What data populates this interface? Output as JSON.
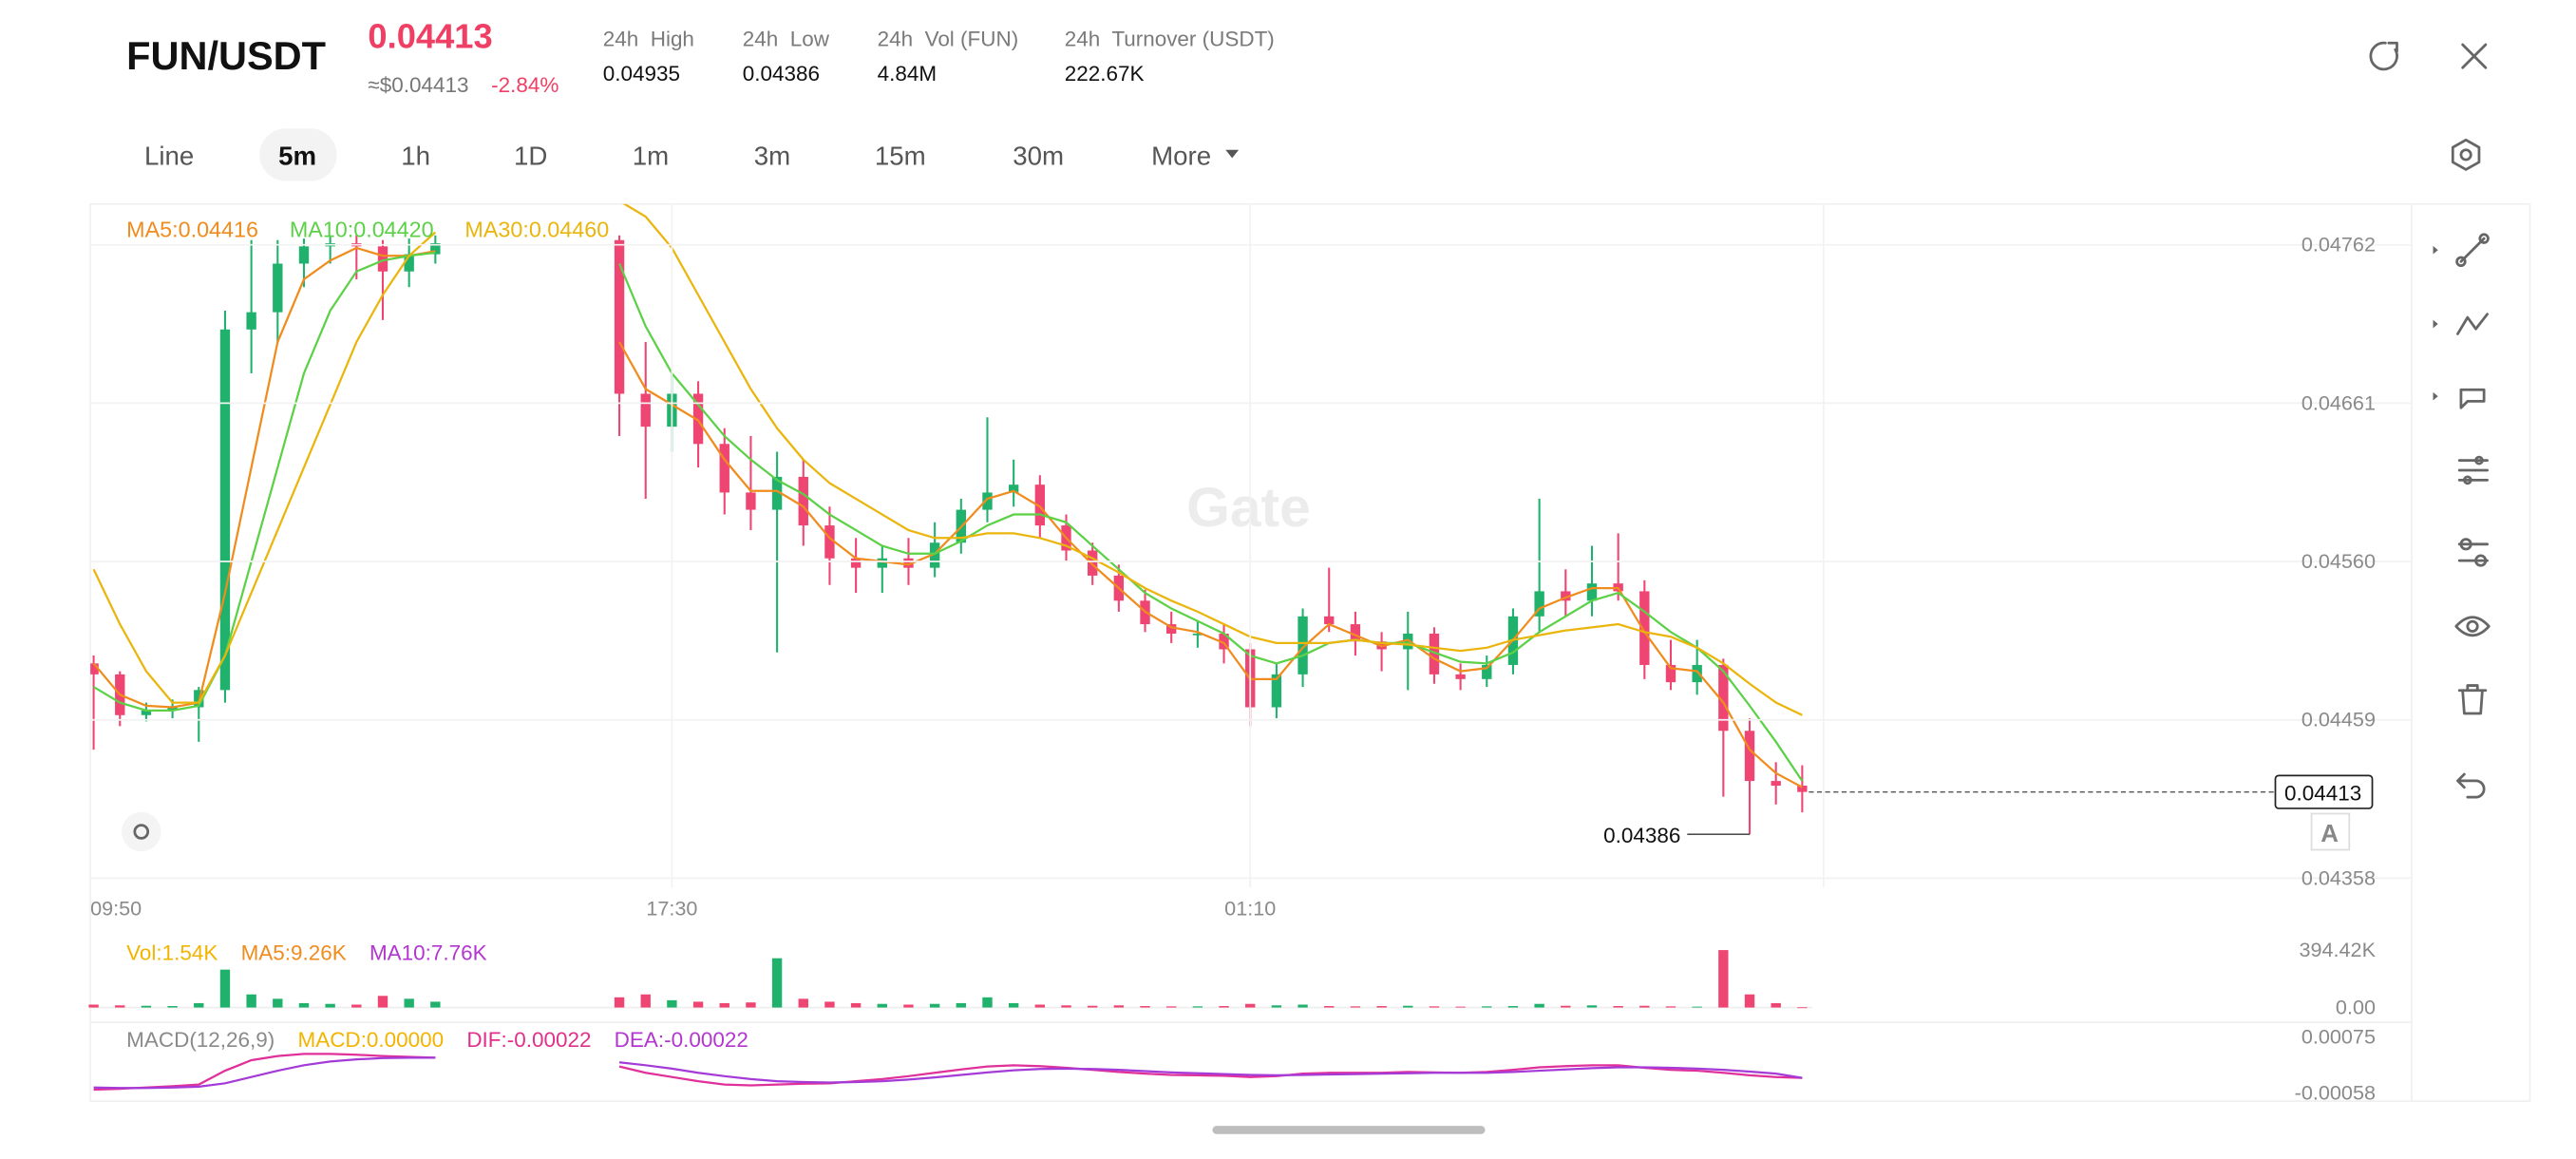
{
  "header": {
    "pair": "FUN/USDT",
    "price": "0.04413",
    "usd_price": "≈$0.04413",
    "change": "-2.84%",
    "stats": [
      {
        "label": "24h  High",
        "value": "0.04935"
      },
      {
        "label": "24h  Low",
        "value": "0.04386"
      },
      {
        "label": "24h  Vol (FUN)",
        "value": "4.84M"
      },
      {
        "label": "24h  Turnover (USDT)",
        "value": "222.67K"
      }
    ]
  },
  "tabs": [
    "Line",
    "5m",
    "1h",
    "1D",
    "1m",
    "3m",
    "15m",
    "30m",
    "More"
  ],
  "chart_data": {
    "type": "candlestick",
    "watermark": "Gate",
    "up_color": "#20b26c",
    "down_color": "#ef4572",
    "categories": [
      "09:50",
      null,
      null,
      null,
      null,
      null,
      null,
      null,
      null,
      null,
      null,
      null,
      null,
      null,
      null,
      null,
      null,
      null,
      null,
      null,
      null,
      null,
      "17:30",
      null,
      null,
      null,
      null,
      null,
      null,
      null,
      null,
      null,
      null,
      null,
      null,
      null,
      null,
      null,
      null,
      null,
      null,
      null,
      null,
      null,
      "01:10",
      null,
      null,
      null,
      null,
      null,
      null,
      null,
      null,
      null,
      null,
      null,
      null,
      null,
      null,
      null,
      null,
      null,
      null,
      null,
      null,
      null
    ],
    "candles": [
      [
        0.04495,
        0.045,
        0.0444,
        0.04488
      ],
      [
        0.04488,
        0.0449,
        0.04455,
        0.04462
      ],
      [
        0.04462,
        0.0447,
        0.04458,
        0.04465
      ],
      [
        0.04465,
        0.04472,
        0.0446,
        0.04467
      ],
      [
        0.04467,
        0.0448,
        0.04445,
        0.04478
      ],
      [
        0.04478,
        0.0472,
        0.0447,
        0.04708
      ],
      [
        0.04708,
        0.04765,
        0.0468,
        0.04719
      ],
      [
        0.04719,
        0.04765,
        0.047,
        0.0475
      ],
      [
        0.0475,
        0.04766,
        0.04735,
        0.04761
      ],
      [
        0.04761,
        0.04768,
        0.0475,
        0.04763
      ],
      [
        0.04763,
        0.04768,
        0.0474,
        0.04761
      ],
      [
        0.04761,
        0.04765,
        0.04714,
        0.04745
      ],
      [
        0.04745,
        0.04766,
        0.04735,
        0.04756
      ],
      [
        0.04756,
        0.04768,
        0.0475,
        0.04763
      ],
      null,
      null,
      null,
      null,
      null,
      null,
      [
        0.04765,
        0.04768,
        0.0464,
        0.04667
      ],
      [
        0.04667,
        0.047,
        0.046,
        0.04646
      ],
      [
        0.04646,
        0.0468,
        0.0463,
        0.04667
      ],
      [
        0.04667,
        0.04675,
        0.0462,
        0.04635
      ],
      [
        0.04635,
        0.04645,
        0.0459,
        0.04604
      ],
      [
        0.04604,
        0.0464,
        0.0458,
        0.04593
      ],
      [
        0.04593,
        0.0463,
        0.04502,
        0.04614
      ],
      [
        0.04614,
        0.04625,
        0.0457,
        0.04583
      ],
      [
        0.04583,
        0.04595,
        0.04545,
        0.04562
      ],
      [
        0.04562,
        0.04575,
        0.0454,
        0.04556
      ],
      [
        0.04556,
        0.0457,
        0.0454,
        0.04562
      ],
      [
        0.04562,
        0.04575,
        0.04545,
        0.04556
      ],
      [
        0.04556,
        0.04585,
        0.0455,
        0.04572
      ],
      [
        0.04572,
        0.046,
        0.04565,
        0.04593
      ],
      [
        0.04593,
        0.04652,
        0.04585,
        0.04604
      ],
      [
        0.04604,
        0.04625,
        0.04595,
        0.04609
      ],
      [
        0.04609,
        0.04615,
        0.04575,
        0.04583
      ],
      [
        0.04583,
        0.0459,
        0.0456,
        0.04567
      ],
      [
        0.04567,
        0.04572,
        0.04545,
        0.04551
      ],
      [
        0.04551,
        0.04558,
        0.04528,
        0.04535
      ],
      [
        0.04535,
        0.04542,
        0.04515,
        0.0452
      ],
      [
        0.0452,
        0.04528,
        0.04508,
        0.04514
      ],
      [
        0.04514,
        0.04522,
        0.04505,
        0.04514
      ],
      [
        0.04514,
        0.0452,
        0.04495,
        0.04504
      ],
      [
        0.04504,
        0.04508,
        0.04455,
        0.04467
      ],
      [
        0.04467,
        0.04495,
        0.0446,
        0.04488
      ],
      [
        0.04488,
        0.0453,
        0.0448,
        0.04525
      ],
      [
        0.04525,
        0.04556,
        0.04515,
        0.0452
      ],
      [
        0.0452,
        0.04528,
        0.045,
        0.04509
      ],
      [
        0.04509,
        0.04515,
        0.0449,
        0.04504
      ],
      [
        0.04504,
        0.04528,
        0.04478,
        0.04514
      ],
      [
        0.04514,
        0.04518,
        0.04482,
        0.04488
      ],
      [
        0.04488,
        0.04495,
        0.04478,
        0.04485
      ],
      [
        0.04485,
        0.045,
        0.0448,
        0.04494
      ],
      [
        0.04494,
        0.0453,
        0.04488,
        0.04525
      ],
      [
        0.04525,
        0.046,
        0.04515,
        0.04541
      ],
      [
        0.04541,
        0.04555,
        0.04525,
        0.04535
      ],
      [
        0.04535,
        0.0457,
        0.04525,
        0.04546
      ],
      [
        0.04546,
        0.04578,
        0.04535,
        0.04541
      ],
      [
        0.04541,
        0.04548,
        0.04485,
        0.04494
      ],
      [
        0.04494,
        0.0451,
        0.04478,
        0.04483
      ],
      [
        0.04483,
        0.0451,
        0.04475,
        0.04494
      ],
      [
        0.04494,
        0.04498,
        0.0441,
        0.04452
      ],
      [
        0.04452,
        0.0446,
        0.04386,
        0.0442
      ],
      [
        0.0442,
        0.04432,
        0.04405,
        0.04417
      ],
      [
        0.04417,
        0.0443,
        0.044,
        0.04413
      ]
    ],
    "series": [
      {
        "name": "MA5:0.04416",
        "color": "#f08c1e",
        "values": [
          0.04495,
          0.04475,
          0.04468,
          0.04467,
          0.0447,
          0.0454,
          0.0462,
          0.047,
          0.0474,
          0.04752,
          0.0476,
          0.04755,
          0.04755,
          0.04758,
          null,
          null,
          null,
          null,
          null,
          null,
          0.047,
          0.0467,
          0.0466,
          0.0465,
          0.04625,
          0.04605,
          0.04605,
          0.04595,
          0.04575,
          0.04562,
          0.0456,
          0.04558,
          0.04565,
          0.04582,
          0.046,
          0.04605,
          0.04595,
          0.04575,
          0.04558,
          0.04543,
          0.04528,
          0.04518,
          0.04515,
          0.04508,
          0.04485,
          0.04485,
          0.04505,
          0.0452,
          0.04513,
          0.04506,
          0.0451,
          0.04498,
          0.0449,
          0.04492,
          0.0451,
          0.0453,
          0.04537,
          0.04543,
          0.04543,
          0.04515,
          0.04492,
          0.0449,
          0.0447,
          0.0444,
          0.04425,
          0.04416
        ]
      },
      {
        "name": "MA10:0.04420",
        "color": "#5cd147",
        "values": [
          0.0448,
          0.0447,
          0.04465,
          0.04465,
          0.04468,
          0.045,
          0.0456,
          0.0462,
          0.0468,
          0.0472,
          0.04745,
          0.04752,
          0.04755,
          0.04757,
          null,
          null,
          null,
          null,
          null,
          null,
          0.0475,
          0.0471,
          0.0468,
          0.0466,
          0.0464,
          0.04625,
          0.04612,
          0.04603,
          0.0459,
          0.0458,
          0.0457,
          0.04565,
          0.04565,
          0.04573,
          0.04583,
          0.0459,
          0.0459,
          0.04585,
          0.0457,
          0.04555,
          0.0454,
          0.0453,
          0.04522,
          0.04514,
          0.045,
          0.04495,
          0.045,
          0.04508,
          0.0451,
          0.04508,
          0.04508,
          0.04502,
          0.04496,
          0.04495,
          0.04502,
          0.04515,
          0.04525,
          0.04535,
          0.0454,
          0.04528,
          0.04515,
          0.04505,
          0.0449,
          0.04468,
          0.04445,
          0.0442
        ]
      },
      {
        "name": "MA30:0.04460",
        "color": "#eab50c",
        "values": [
          0.04555,
          0.0452,
          0.0449,
          0.0447,
          0.0447,
          0.045,
          0.0454,
          0.0458,
          0.0462,
          0.0466,
          0.047,
          0.0473,
          0.04755,
          0.0477,
          null,
          null,
          null,
          null,
          null,
          null,
          0.0479,
          0.0478,
          0.0476,
          0.0473,
          0.047,
          0.0467,
          0.04645,
          0.04625,
          0.0461,
          0.046,
          0.0459,
          0.0458,
          0.04575,
          0.04575,
          0.04578,
          0.04578,
          0.04575,
          0.0457,
          0.04562,
          0.04553,
          0.04543,
          0.04535,
          0.04528,
          0.0452,
          0.04512,
          0.04508,
          0.04508,
          0.04508,
          0.0451,
          0.04508,
          0.04507,
          0.04505,
          0.04503,
          0.04505,
          0.0451,
          0.04513,
          0.04516,
          0.04518,
          0.0452,
          0.04515,
          0.04512,
          0.04505,
          0.04495,
          0.04482,
          0.0447,
          0.04462
        ]
      }
    ],
    "ylim": [
      0.04352,
      0.04788
    ],
    "yticks": [
      0.04358,
      0.04459,
      {
        "value": 0.0456,
        "label": "0.04560"
      },
      0.04661,
      0.04762
    ],
    "last_price": 0.04413,
    "low_marker": 0.04386,
    "grid": true,
    "volume": {
      "legend": [
        {
          "text": "Vol:1.54K",
          "color": "#f2b400"
        },
        {
          "text": "MA5:9.26K",
          "color": "#f08c1e"
        },
        {
          "text": "MA10:7.76K",
          "color": "#b236cf"
        }
      ],
      "values": [
        20000,
        15000,
        12000,
        10000,
        30000,
        260000,
        90000,
        60000,
        30000,
        25000,
        20000,
        80000,
        60000,
        40000,
        null,
        null,
        null,
        null,
        null,
        null,
        70000,
        90000,
        50000,
        40000,
        30000,
        35000,
        338000,
        60000,
        40000,
        30000,
        25000,
        20000,
        25000,
        30000,
        70000,
        30000,
        20000,
        15000,
        12000,
        15000,
        10000,
        8000,
        8000,
        10000,
        25000,
        15000,
        20000,
        10000,
        8000,
        10000,
        12000,
        8000,
        6000,
        8000,
        10000,
        25000,
        12000,
        15000,
        10000,
        12000,
        8000,
        6000,
        394000,
        90000,
        30000,
        1540
      ],
      "ylim": [
        0,
        394420
      ],
      "yticks": [
        {
          "value": 0,
          "label": "0.00"
        },
        {
          "value": 394420,
          "label": "394.42K"
        }
      ]
    },
    "macd": {
      "legend": [
        {
          "text": "MACD(12,26,9)",
          "color": "#8a8a8a"
        },
        {
          "text": "MACD:0.00000",
          "color": "#f2b400"
        },
        {
          "text": "DIF:-0.00022",
          "color": "#e0308a"
        },
        {
          "text": "DEA:-0.00022",
          "color": "#b236cf"
        }
      ],
      "series": [
        {
          "name": "DIF",
          "color": "#e0309a",
          "values": [
            -0.0005,
            -0.00048,
            -0.00045,
            -0.00042,
            -0.00038,
            -5e-05,
            0.0002,
            0.0003,
            0.00035,
            0.00035,
            0.00033,
            0.0003,
            0.00028,
            0.00026,
            null,
            null,
            null,
            null,
            null,
            null,
            5e-05,
            -0.0001,
            -0.0002,
            -0.0003,
            -0.00038,
            -0.0004,
            -0.00038,
            -0.00036,
            -0.00035,
            -0.0003,
            -0.00025,
            -0.00018,
            -0.0001,
            -2e-05,
            5e-05,
            8e-05,
            6e-05,
            2e-05,
            -3e-05,
            -8e-05,
            -0.00012,
            -0.00015,
            -0.00016,
            -0.00017,
            -0.0002,
            -0.00018,
            -0.00012,
            -0.0001,
            -0.0001,
            -0.0001,
            -8e-05,
            -9e-05,
            -0.0001,
            -8e-05,
            -3e-05,
            3e-05,
            6e-05,
            8e-05,
            8e-05,
            2e-05,
            -3e-05,
            -5e-05,
            -0.0001,
            -0.00016,
            -0.0002,
            -0.00022
          ]
        },
        {
          "name": "DEA",
          "color": "#a43ad8",
          "values": [
            -0.00045,
            -0.00046,
            -0.00046,
            -0.00045,
            -0.00043,
            -0.00035,
            -0.0002,
            -5e-05,
            8e-05,
            0.00017,
            0.00022,
            0.00025,
            0.00026,
            0.00026,
            null,
            null,
            null,
            null,
            null,
            null,
            0.00015,
            8e-05,
            0,
            -0.0001,
            -0.00018,
            -0.00025,
            -0.0003,
            -0.00032,
            -0.00033,
            -0.00032,
            -0.0003,
            -0.00026,
            -0.00021,
            -0.00015,
            -9e-05,
            -4e-05,
            -1e-05,
            0,
            -1e-05,
            -3e-05,
            -6e-05,
            -9e-05,
            -0.00011,
            -0.00013,
            -0.00015,
            -0.00016,
            -0.00015,
            -0.00014,
            -0.00013,
            -0.00012,
            -0.00011,
            -0.0001,
            -0.0001,
            -0.0001,
            -8e-05,
            -5e-05,
            -2e-05,
            1e-05,
            3e-05,
            3e-05,
            2e-05,
            0,
            -3e-05,
            -7e-05,
            -0.00012,
            -0.00022
          ]
        }
      ],
      "ylim": [
        -0.00058,
        0.00075
      ],
      "yticks": [
        -0.00058,
        0.00075
      ]
    }
  }
}
